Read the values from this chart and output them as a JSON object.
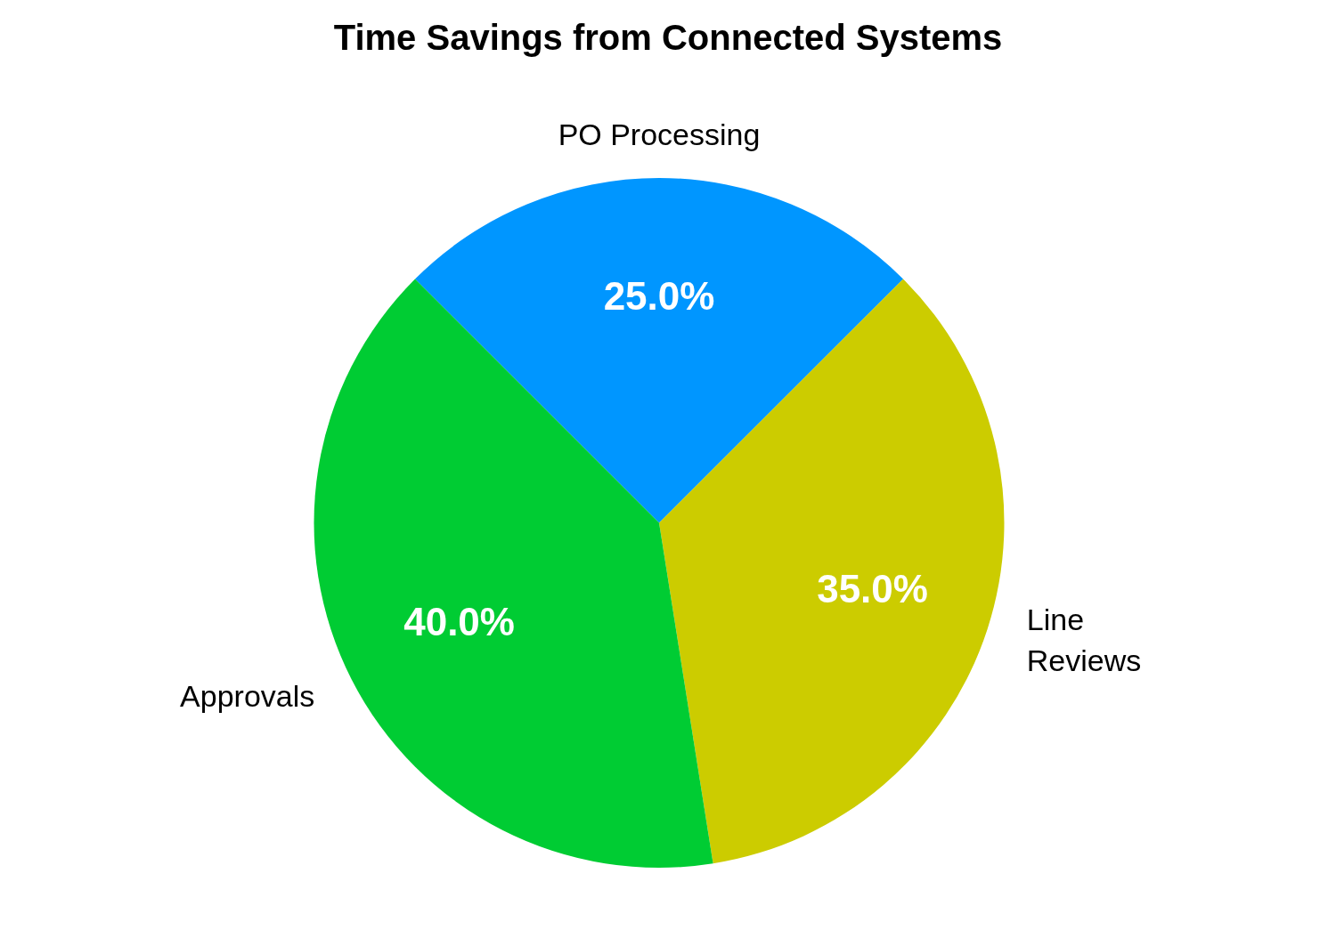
{
  "chart_data": {
    "type": "pie",
    "title": "Time Savings from Connected Systems",
    "categories": [
      "PO Processing",
      "Line Reviews",
      "Approvals"
    ],
    "values": [
      25,
      35,
      40
    ],
    "colors": [
      "#0096ff",
      "#cccc00",
      "#00cc33"
    ],
    "value_labels": [
      "25.0%",
      "35.0%",
      "40.0%"
    ],
    "legend": false
  }
}
